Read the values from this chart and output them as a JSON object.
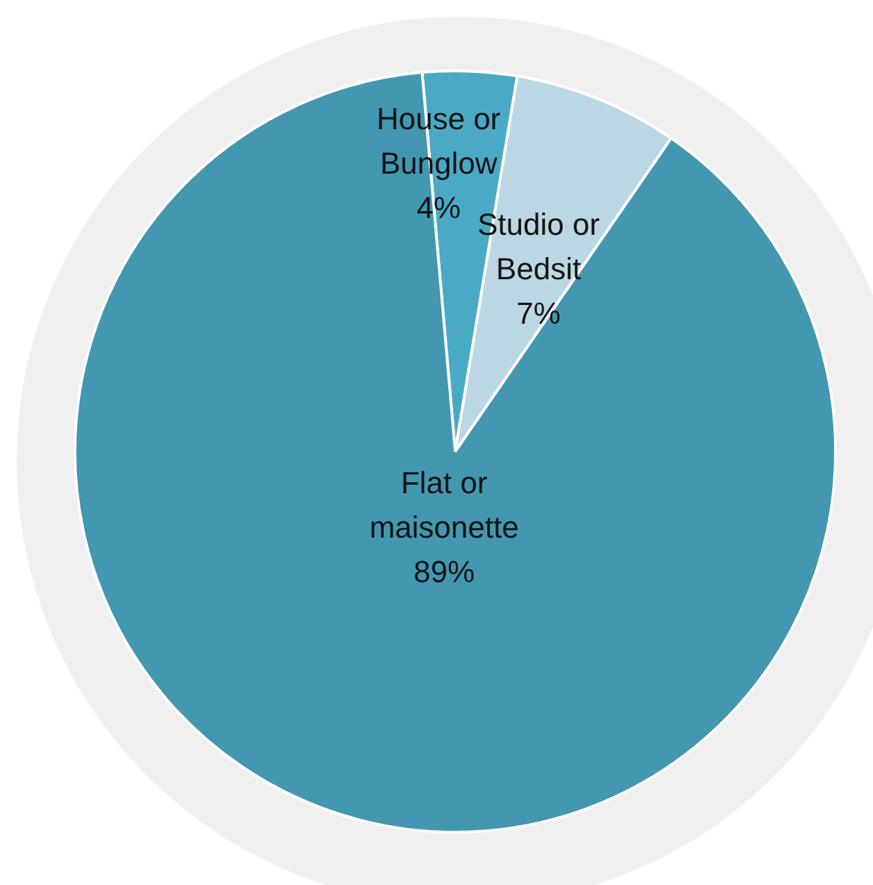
{
  "chart_data": {
    "type": "pie",
    "categories": [
      "House or Bunglow",
      "Studio or Bedsit",
      "Flat or maisonette"
    ],
    "values": [
      4,
      7,
      89
    ],
    "colors": [
      "#4aaac6",
      "#bbd7e3",
      "#4397b0"
    ],
    "value_labels": [
      "4%",
      "7%",
      "89%"
    ]
  }
}
